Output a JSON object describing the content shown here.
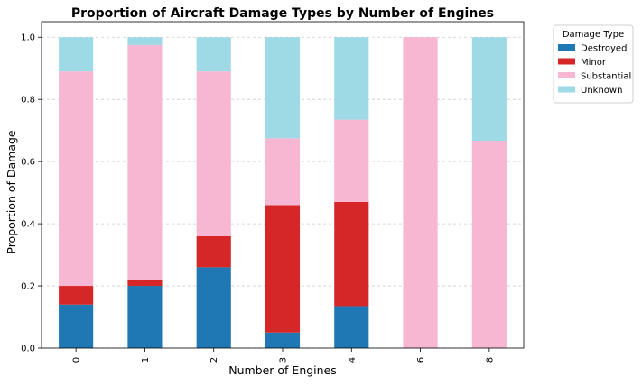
{
  "chart_data": {
    "type": "bar",
    "stacked": true,
    "title": "Proportion of Aircraft Damage Types by Number of Engines",
    "xlabel": "Number of Engines",
    "ylabel": "Proportion of Damage",
    "categories": [
      "0",
      "1",
      "2",
      "3",
      "4",
      "6",
      "8"
    ],
    "ylim": [
      0,
      1.05
    ],
    "yticks": [
      "0.0",
      "0.2",
      "0.4",
      "0.6",
      "0.8",
      "1.0"
    ],
    "grid": "horizontal dashed",
    "legend_title": "Damage Type",
    "legend_position": "outside right",
    "series": [
      {
        "name": "Destroyed",
        "color": "#1f77b4",
        "values": [
          0.14,
          0.2,
          0.26,
          0.05,
          0.135,
          0.0,
          0.0
        ]
      },
      {
        "name": "Minor",
        "color": "#d62728",
        "values": [
          0.06,
          0.02,
          0.1,
          0.41,
          0.335,
          0.0,
          0.0
        ]
      },
      {
        "name": "Substantial",
        "color": "#f7b6d2",
        "values": [
          0.69,
          0.755,
          0.53,
          0.215,
          0.265,
          1.0,
          0.667
        ]
      },
      {
        "name": "Unknown",
        "color": "#9edae5",
        "values": [
          0.11,
          0.025,
          0.11,
          0.325,
          0.265,
          0.0,
          0.333
        ]
      }
    ]
  }
}
